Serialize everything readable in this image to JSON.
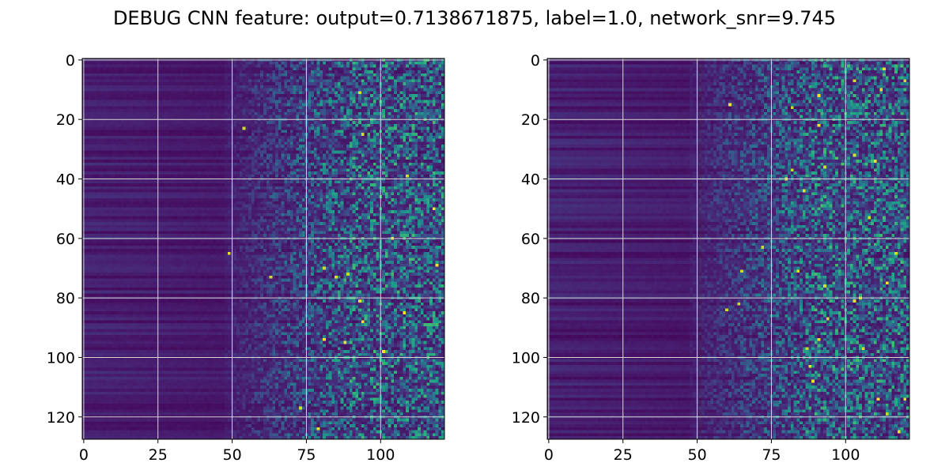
{
  "title": "DEBUG CNN feature: output=0.7138671875, label=1.0, network_snr=9.745",
  "chart_data": [
    {
      "type": "heatmap",
      "panel": "left",
      "rows": 128,
      "cols": 122,
      "colormap": "viridis",
      "grid": true,
      "x_range": [
        -0.5,
        121.5
      ],
      "y_range": [
        127.5,
        -0.5
      ],
      "x_ticks": [
        0,
        25,
        50,
        75,
        100
      ],
      "x_tick_labels": [
        "0",
        "25",
        "50",
        "75",
        "100"
      ],
      "y_ticks": [
        0,
        20,
        40,
        60,
        80,
        100,
        120
      ],
      "y_tick_labels": [
        "0",
        "20",
        "40",
        "60",
        "80",
        "100",
        "120"
      ],
      "description_values": "low uniform values (dark purple) for columns 0-50, increasingly noisy speckled values for columns 55-121 with scattered bright yellow maxima",
      "seed": 17
    },
    {
      "type": "heatmap",
      "panel": "right",
      "rows": 128,
      "cols": 122,
      "colormap": "viridis",
      "grid": true,
      "x_range": [
        -0.5,
        121.5
      ],
      "y_range": [
        127.5,
        -0.5
      ],
      "x_ticks": [
        0,
        25,
        50,
        75,
        100
      ],
      "x_tick_labels": [
        "0",
        "25",
        "50",
        "75",
        "100"
      ],
      "y_ticks": [
        0,
        20,
        40,
        60,
        80,
        100,
        120
      ],
      "y_tick_labels": [
        "0",
        "20",
        "40",
        "60",
        "80",
        "100",
        "120"
      ],
      "description_values": "low uniform values (dark purple) for columns 0-50, increasingly noisy speckled values for columns 55-121 with scattered bright yellow maxima",
      "seed": 91
    }
  ]
}
